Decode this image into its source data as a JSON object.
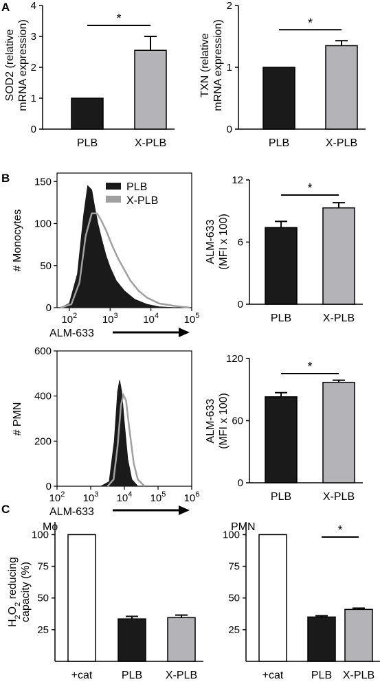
{
  "figure": {
    "panel_labels": [
      "A",
      "B",
      "C"
    ]
  },
  "colors": {
    "plb": "#1a1a1a",
    "xplb": "#b4b4b8",
    "cat": "#ffffff",
    "axis": "#000000",
    "hist_xplb_line": "#a0a0a0"
  },
  "chart_data": [
    {
      "id": "A-SOD2",
      "type": "bar",
      "ylabel": [
        "SOD2 (relative",
        "mRNA expression)"
      ],
      "categories": [
        "PLB",
        "X-PLB"
      ],
      "values": [
        1.0,
        2.55
      ],
      "errors": [
        0,
        0.45
      ],
      "yticks": [
        0,
        1,
        2,
        3,
        4
      ],
      "ylim": [
        0,
        4
      ],
      "significance": {
        "between": [
          0,
          1
        ],
        "label": "*"
      }
    },
    {
      "id": "A-TXN",
      "type": "bar",
      "ylabel": [
        "TXN (relative",
        "mRNA expression)"
      ],
      "categories": [
        "PLB",
        "X-PLB"
      ],
      "values": [
        1.0,
        1.35
      ],
      "errors": [
        0,
        0.08
      ],
      "yticks": [
        0,
        1,
        2
      ],
      "ylim": [
        0,
        2
      ],
      "significance": {
        "between": [
          0,
          1
        ],
        "label": "*"
      }
    },
    {
      "id": "B-mono-hist",
      "type": "area",
      "ylabel": "# Monocytes",
      "xlabel": "ALM-633",
      "xscale": "log",
      "xlim": [
        50,
        100000
      ],
      "xticks": [
        "10",
        "10",
        "10",
        "10"
      ],
      "xtick_exponents": [
        "2",
        "3",
        "4",
        "5"
      ],
      "ylim": [
        0,
        160
      ],
      "yticks": [
        0,
        50,
        100,
        150
      ],
      "legend": [
        "PLB",
        "X-PLB"
      ],
      "legend_position": "top-right",
      "series": [
        {
          "name": "PLB",
          "log10_x": [
            1.78,
            2.0,
            2.2,
            2.35,
            2.45,
            2.55,
            2.62,
            2.7,
            2.8,
            2.9,
            3.0,
            3.15,
            3.35,
            3.6,
            3.9,
            4.2,
            4.6
          ],
          "y": [
            0,
            5,
            40,
            110,
            145,
            140,
            120,
            100,
            80,
            62,
            48,
            32,
            20,
            10,
            4,
            1,
            0
          ]
        },
        {
          "name": "X-PLB",
          "log10_x": [
            1.78,
            2.05,
            2.25,
            2.4,
            2.55,
            2.68,
            2.78,
            2.9,
            3.05,
            3.2,
            3.35,
            3.5,
            3.7,
            3.9,
            4.2,
            4.6,
            4.95
          ],
          "y": [
            0,
            4,
            30,
            85,
            112,
            112,
            104,
            92,
            74,
            58,
            45,
            32,
            20,
            12,
            5,
            2,
            0
          ]
        }
      ]
    },
    {
      "id": "B-mono-bar",
      "type": "bar",
      "ylabel": [
        "ALM-633",
        "(MFI x 100)"
      ],
      "categories": [
        "PLB",
        "X-PLB"
      ],
      "values": [
        7.4,
        9.3
      ],
      "errors": [
        0.6,
        0.5
      ],
      "yticks": [
        0,
        6,
        12
      ],
      "ylim": [
        0,
        12
      ],
      "significance": {
        "between": [
          0,
          1
        ],
        "label": "*"
      }
    },
    {
      "id": "B-pmn-hist",
      "type": "area",
      "ylabel": "# PMN",
      "xlabel": "ALM-633",
      "xscale": "log",
      "xlim": [
        100,
        1000000
      ],
      "xticks": [
        "10",
        "10",
        "10",
        "10",
        "10"
      ],
      "xtick_exponents": [
        "2",
        "3",
        "4",
        "5",
        "6"
      ],
      "ylim": [
        0,
        600
      ],
      "yticks": [
        0,
        200,
        400,
        600
      ],
      "series": [
        {
          "name": "PLB",
          "log10_x": [
            3.3,
            3.55,
            3.7,
            3.8,
            3.86,
            3.92,
            4.0,
            4.1,
            4.22,
            4.4
          ],
          "y": [
            0,
            20,
            200,
            420,
            470,
            420,
            280,
            120,
            30,
            0
          ]
        },
        {
          "name": "X-PLB",
          "log10_x": [
            3.5,
            3.68,
            3.8,
            3.9,
            3.97,
            4.05,
            4.15,
            4.28,
            4.4,
            4.6
          ],
          "y": [
            0,
            30,
            180,
            360,
            405,
            380,
            250,
            100,
            30,
            0
          ]
        }
      ]
    },
    {
      "id": "B-pmn-bar",
      "type": "bar",
      "ylabel": [
        "ALM-633",
        "(MFI x 100)"
      ],
      "categories": [
        "PLB",
        "X-PLB"
      ],
      "values": [
        83,
        97
      ],
      "errors": [
        4,
        2
      ],
      "yticks": [
        0,
        60,
        120
      ],
      "ylim": [
        0,
        120
      ],
      "significance": {
        "between": [
          0,
          1
        ],
        "label": "*"
      }
    },
    {
      "id": "C-Mo",
      "type": "bar",
      "title": "Mo",
      "ylabel": [
        "H2O2 reducing",
        "capacity (%)"
      ],
      "categories": [
        "+cat",
        "PLB",
        "X-PLB"
      ],
      "values": [
        100,
        33.5,
        34.5
      ],
      "errors": [
        0,
        2,
        2
      ],
      "yticks": [
        25,
        50,
        75,
        100
      ],
      "ylim": [
        0,
        110
      ]
    },
    {
      "id": "C-PMN",
      "type": "bar",
      "title": "PMN",
      "categories": [
        "+cat",
        "PLB",
        "X-PLB"
      ],
      "values": [
        100,
        35,
        41
      ],
      "errors": [
        0,
        1,
        1
      ],
      "yticks": [
        25,
        50,
        75,
        100
      ],
      "ylim": [
        0,
        110
      ],
      "significance": {
        "between": [
          1,
          2
        ],
        "label": "*"
      }
    }
  ]
}
